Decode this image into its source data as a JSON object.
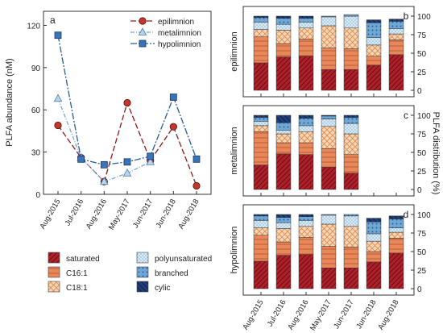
{
  "colors": {
    "epilimnion": "#8b1a1a",
    "metalimnion": "#5b9bd5",
    "hypolimnion": "#1f5aa6",
    "saturated": "#b0202a",
    "c161": "#e8875a",
    "c181": "#f6cfa9",
    "polyunsaturated": "#c9e3f3",
    "branched": "#6fa8d6",
    "cylic": "#1f3f7a"
  },
  "chart_data": [
    {
      "type": "line",
      "panel_label": "a",
      "ylabel": "PLFA abundance (nM)",
      "ylim": [
        0,
        130
      ],
      "yticks": [
        "0",
        "30",
        "60",
        "90",
        "120"
      ],
      "categories": [
        "Aug-2015",
        "Jul-2016",
        "Aug-2016",
        "May-2017",
        "Jun-2017",
        "Jun-2018",
        "Aug-2018"
      ],
      "legend_position": "top-right",
      "series": [
        {
          "name": "epilimnion",
          "values": [
            49,
            26,
            9,
            65,
            24,
            48,
            6
          ]
        },
        {
          "name": "metalimnion",
          "values": [
            68,
            26,
            9,
            15,
            23,
            null,
            null
          ]
        },
        {
          "name": "hypolimnion",
          "values": [
            113,
            25,
            21,
            23,
            27,
            69,
            25
          ]
        }
      ]
    },
    {
      "type": "bar",
      "stacked": true,
      "panel_label": "b",
      "ylabel": "epilimnion",
      "ylim": [
        0,
        100
      ],
      "yticks": [
        "0",
        "25",
        "50",
        "75",
        "100"
      ],
      "categories": [
        "Aug-2015",
        "Jul-2016",
        "Aug-2016",
        "May-2017",
        "Jun-2017",
        "Jun-2018",
        "Aug-2018"
      ],
      "series": [
        {
          "name": "saturated",
          "values": [
            37,
            45,
            46,
            28,
            28,
            34,
            48
          ]
        },
        {
          "name": "C16:1",
          "values": [
            35,
            18,
            23,
            29,
            28,
            12,
            20
          ]
        },
        {
          "name": "C18:1",
          "values": [
            10,
            18,
            15,
            30,
            28,
            15,
            8
          ]
        },
        {
          "name": "polyunsaturated",
          "values": [
            10,
            8,
            8,
            12,
            16,
            10,
            7
          ]
        },
        {
          "name": "branched",
          "values": [
            6,
            8,
            5,
            1,
            2,
            20,
            10
          ]
        },
        {
          "name": "cylic",
          "values": [
            2,
            3,
            3,
            0,
            0,
            4,
            3
          ]
        }
      ]
    },
    {
      "type": "bar",
      "stacked": true,
      "panel_label": "c",
      "ylabel": "metalimnion",
      "ylim": [
        0,
        100
      ],
      "yticks": [
        "0",
        "25",
        "50",
        "75",
        "100"
      ],
      "categories": [
        "Aug-2015",
        "Jul-2016",
        "Aug-2016",
        "May-2017",
        "Jun-2017",
        "Jun-2018",
        "Aug-2018"
      ],
      "series": [
        {
          "name": "saturated",
          "values": [
            33,
            48,
            47,
            30,
            22,
            null,
            null
          ]
        },
        {
          "name": "C16:1",
          "values": [
            45,
            15,
            16,
            25,
            25,
            null,
            null
          ]
        },
        {
          "name": "C18:1",
          "values": [
            8,
            12,
            15,
            30,
            28,
            null,
            null
          ]
        },
        {
          "name": "polyunsaturated",
          "values": [
            6,
            5,
            8,
            10,
            14,
            null,
            null
          ]
        },
        {
          "name": "branched",
          "values": [
            5,
            10,
            10,
            4,
            8,
            null,
            null
          ]
        },
        {
          "name": "cylic",
          "values": [
            3,
            10,
            4,
            1,
            3,
            null,
            null
          ]
        }
      ]
    },
    {
      "type": "bar",
      "stacked": true,
      "panel_label": "d",
      "ylabel": "hypolimnion",
      "ylim": [
        0,
        100
      ],
      "yticks": [
        "0",
        "25",
        "50",
        "75",
        "100"
      ],
      "categories": [
        "Aug-2015",
        "Jul-2016",
        "Aug-2016",
        "May-2017",
        "Jun-2017",
        "Jun-2018",
        "Aug-2018"
      ],
      "series": [
        {
          "name": "saturated",
          "values": [
            37,
            45,
            46,
            28,
            28,
            36,
            48
          ]
        },
        {
          "name": "C16:1",
          "values": [
            35,
            18,
            23,
            29,
            28,
            14,
            20
          ]
        },
        {
          "name": "C18:1",
          "values": [
            10,
            18,
            15,
            30,
            28,
            14,
            8
          ]
        },
        {
          "name": "polyunsaturated",
          "values": [
            10,
            8,
            8,
            12,
            14,
            10,
            6
          ]
        },
        {
          "name": "branched",
          "values": [
            6,
            7,
            5,
            1,
            2,
            16,
            12
          ]
        },
        {
          "name": "cylic",
          "values": [
            2,
            4,
            3,
            0,
            0,
            5,
            4
          ]
        }
      ]
    }
  ],
  "shared_axis": {
    "right_ylabel": "PLFA distribution (%)"
  },
  "fa_legend": [
    {
      "name": "saturated",
      "color_key": "saturated"
    },
    {
      "name": "polyunsaturated",
      "color_key": "polyunsaturated"
    },
    {
      "name": "C16:1",
      "color_key": "c161"
    },
    {
      "name": "branched",
      "color_key": "branched"
    },
    {
      "name": "C18:1",
      "color_key": "c181"
    },
    {
      "name": "cylic",
      "color_key": "cylic"
    }
  ]
}
